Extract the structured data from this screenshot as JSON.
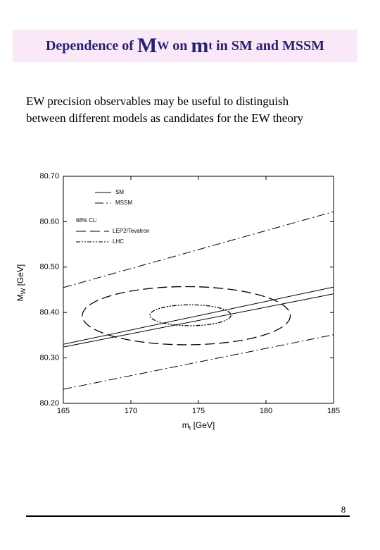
{
  "header": {
    "title": [
      "Dependence of ",
      "M",
      "W",
      " on ",
      "m",
      "t",
      " in SM and MSSM"
    ]
  },
  "body": {
    "lines": [
      "EW precision observables may be useful to distinguish",
      "between different models as candidates for the EW theory"
    ]
  },
  "chart_data": {
    "type": "band-line",
    "x_label": [
      "m",
      "t",
      " [GeV]"
    ],
    "y_label": [
      "M",
      "W",
      " [GeV]"
    ],
    "xlim": [
      165,
      185
    ],
    "xticks": [
      165,
      170,
      175,
      180,
      185
    ],
    "ylim": [
      80.2,
      80.7
    ],
    "yticks": [
      {
        "value": 80.2,
        "label": "80.20"
      },
      {
        "value": 80.3,
        "label": "80.30"
      },
      {
        "value": 80.4,
        "label": "80.40"
      },
      {
        "value": 80.5,
        "label": "80.50"
      },
      {
        "value": 80.6,
        "label": "80.60"
      },
      {
        "value": 80.7,
        "label": "80.70"
      }
    ],
    "series": [
      {
        "name": "SM",
        "style": "solid",
        "color": "#000000",
        "x": [
          165,
          185
        ],
        "lower": [
          80.324,
          80.441
        ],
        "upper": [
          80.33,
          80.456
        ]
      },
      {
        "name": "MSSM",
        "style": "dashdot",
        "color": "#000000",
        "x": [
          165,
          185
        ],
        "lower": [
          80.231,
          80.351
        ],
        "upper": [
          80.455,
          80.622
        ]
      }
    ],
    "ellipse_title": "68% CL:",
    "ellipses": [
      {
        "name": "LEP2/Tevatron",
        "style": "longdash",
        "cx": 174.1,
        "cy": 80.393,
        "rx": 7.7,
        "ry": 0.064
      },
      {
        "name": "LHC",
        "style": "dashdotdot",
        "cx": 174.4,
        "cy": 80.394,
        "rx": 3.0,
        "ry": 0.023
      }
    ]
  },
  "footer": {
    "page": "8"
  }
}
